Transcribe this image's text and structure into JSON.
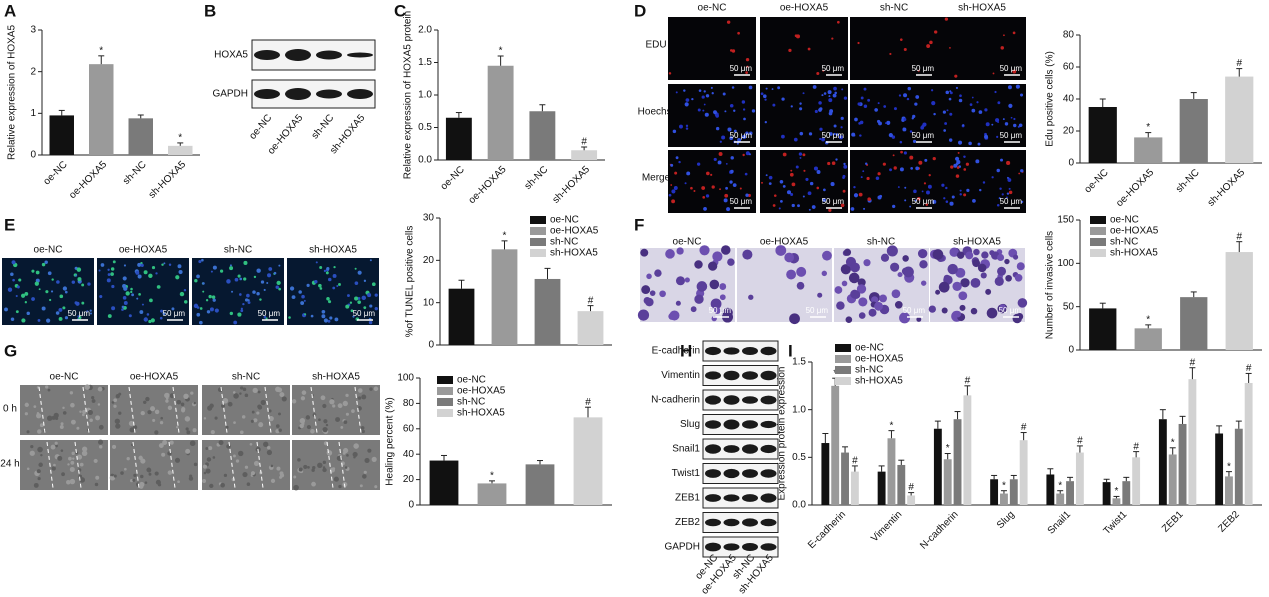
{
  "panel_letters": [
    "A",
    "B",
    "C",
    "D",
    "E",
    "F",
    "G",
    "H",
    "I"
  ],
  "blot_b": {
    "rows": [
      "HOXA5",
      "GAPDH"
    ],
    "lanes": [
      "oe-NC",
      "oe-HOXA5",
      "sh-NC",
      "sh-HOXA5"
    ]
  },
  "images_d": {
    "columns": [
      "oe-NC",
      "oe-HOXA5",
      "sh-NC",
      "sh-HOXA5"
    ],
    "rows": [
      "EDU",
      "Hoechst",
      "Merge"
    ],
    "scale_bar": "50 μm"
  },
  "images_e": {
    "columns": [
      "oe-NC",
      "oe-HOXA5",
      "sh-NC",
      "sh-HOXA5"
    ],
    "scale_bar": "50 μm"
  },
  "images_f": {
    "columns": [
      "oe-NC",
      "oe-HOXA5",
      "sh-NC",
      "sh-HOXA5"
    ],
    "scale_bar": "50 μm"
  },
  "images_g": {
    "columns": [
      "oe-NC",
      "oe-HOXA5",
      "sh-NC",
      "sh-HOXA5"
    ],
    "rows": [
      "0 h",
      "24 h"
    ]
  },
  "blot_h": {
    "rows": [
      "E-cadherin",
      "Vimentin",
      "N-cadherin",
      "Slug",
      "Snail1",
      "Twist1",
      "ZEB1",
      "ZEB2",
      "GAPDH"
    ],
    "lanes": [
      "oe-NC",
      "oe-HOXA5",
      "sh-NC",
      "sh-HOXA5"
    ]
  },
  "chart_data": [
    {
      "type": "bar",
      "y_label": "Relative expression of HOXA5",
      "categories": [
        "oe-NC",
        "oe-HOXA5",
        "sh-NC",
        "sh-HOXA5"
      ],
      "values": [
        0.95,
        2.18,
        0.88,
        0.22
      ],
      "errors": [
        0.12,
        0.2,
        0.08,
        0.07
      ],
      "annotations": [
        null,
        "*",
        null,
        "*"
      ],
      "colors": [
        "#111111",
        "#9a9a9a",
        "#7a7a7a",
        "#d2d2d2"
      ],
      "ylim": [
        0,
        3
      ],
      "yticks": [
        0,
        1,
        2,
        3
      ]
    },
    {
      "type": "bar",
      "y_label": "Relative expression of HOXA5 protein",
      "categories": [
        "oe-NC",
        "oe-HOXA5",
        "sh-NC",
        "sh-HOXA5"
      ],
      "values": [
        0.65,
        1.45,
        0.75,
        0.15
      ],
      "errors": [
        0.08,
        0.15,
        0.1,
        0.05
      ],
      "annotations": [
        null,
        "*",
        null,
        "#"
      ],
      "colors": [
        "#111111",
        "#9a9a9a",
        "#7a7a7a",
        "#d2d2d2"
      ],
      "ylim": [
        0,
        2
      ],
      "yticks": [
        {
          "value": 0,
          "label": "0.0"
        },
        0.5,
        {
          "value": 1,
          "label": "1.0"
        },
        1.5,
        {
          "value": 2,
          "label": "2.0"
        }
      ]
    },
    {
      "type": "bar",
      "y_label": "Edu positive cells (%)",
      "categories": [
        "oe-NC",
        "oe-HOXA5",
        "sh-NC",
        "sh-HOXA5"
      ],
      "values": [
        35,
        16,
        40,
        54
      ],
      "errors": [
        5,
        3,
        4,
        5
      ],
      "annotations": [
        null,
        "*",
        null,
        "#"
      ],
      "colors": [
        "#111111",
        "#9a9a9a",
        "#7a7a7a",
        "#d2d2d2"
      ],
      "ylim": [
        0,
        80
      ],
      "yticks": [
        0,
        20,
        40,
        60,
        80
      ]
    },
    {
      "type": "bar",
      "y_label": "%of TUNEL positive cells",
      "legend": "upper right",
      "series": [
        {
          "name": "oe-NC",
          "color": "#111111",
          "values": [
            13.3
          ],
          "errors": [
            2
          ]
        },
        {
          "name": "oe-HOXA5",
          "color": "#9a9a9a",
          "values": [
            22.6
          ],
          "errors": [
            2
          ],
          "annotations": [
            "*"
          ]
        },
        {
          "name": "sh-NC",
          "color": "#7a7a7a",
          "values": [
            15.6
          ],
          "errors": [
            2.5
          ]
        },
        {
          "name": "sh-HOXA5",
          "color": "#d2d2d2",
          "values": [
            8.0
          ],
          "errors": [
            1.3
          ],
          "annotations": [
            "#"
          ]
        }
      ],
      "ylim": [
        0,
        30
      ],
      "yticks": [
        0,
        10,
        20,
        30
      ]
    },
    {
      "type": "bar",
      "y_label": "Number of invasive cells",
      "legend": "upper left",
      "series": [
        {
          "name": "oe-NC",
          "color": "#111111",
          "values": [
            48
          ],
          "errors": [
            6
          ]
        },
        {
          "name": "oe-HOXA5",
          "color": "#9a9a9a",
          "values": [
            25
          ],
          "errors": [
            4
          ],
          "annotations": [
            "*"
          ]
        },
        {
          "name": "sh-NC",
          "color": "#7a7a7a",
          "values": [
            61
          ],
          "errors": [
            6
          ]
        },
        {
          "name": "sh-HOXA5",
          "color": "#d2d2d2",
          "values": [
            113
          ],
          "errors": [
            12
          ],
          "annotations": [
            "#"
          ]
        }
      ],
      "ylim": [
        0,
        150
      ],
      "yticks": [
        0,
        50,
        100,
        150
      ]
    },
    {
      "type": "bar",
      "y_label": "Healing percent (%)",
      "legend": "upper left",
      "series": [
        {
          "name": "oe-NC",
          "color": "#111111",
          "values": [
            35
          ],
          "errors": [
            4
          ]
        },
        {
          "name": "oe-HOXA5",
          "color": "#9a9a9a",
          "values": [
            17
          ],
          "errors": [
            2
          ],
          "annotations": [
            "*"
          ]
        },
        {
          "name": "sh-NC",
          "color": "#7a7a7a",
          "values": [
            32
          ],
          "errors": [
            3
          ]
        },
        {
          "name": "sh-HOXA5",
          "color": "#d2d2d2",
          "values": [
            69
          ],
          "errors": [
            8
          ],
          "annotations": [
            "#"
          ]
        }
      ],
      "ylim": [
        0,
        100
      ],
      "yticks": [
        0,
        20,
        40,
        60,
        80,
        100
      ]
    },
    {
      "type": "bar",
      "y_label": "Expression protein expression",
      "legend": "upper left",
      "categories": [
        "E-cadherin",
        "Vimentin",
        "N-cadherin",
        "Slug",
        "Snail1",
        "Twist1",
        "ZEB1",
        "ZEB2"
      ],
      "series": [
        {
          "name": "oe-NC",
          "color": "#111111",
          "values": [
            0.65,
            0.35,
            0.8,
            0.27,
            0.32,
            0.24,
            0.9,
            0.75
          ],
          "errors": [
            0.1,
            0.06,
            0.08,
            0.04,
            0.06,
            0.03,
            0.1,
            0.08
          ]
        },
        {
          "name": "oe-HOXA5",
          "color": "#9a9a9a",
          "values": [
            1.25,
            0.7,
            0.48,
            0.12,
            0.12,
            0.07,
            0.53,
            0.3
          ],
          "errors": [
            0.08,
            0.08,
            0.06,
            0.03,
            0.03,
            0.02,
            0.07,
            0.05
          ],
          "annotations": [
            "*",
            "*",
            "*",
            "*",
            "*",
            "*",
            "*",
            "*"
          ]
        },
        {
          "name": "sh-NC",
          "color": "#7a7a7a",
          "values": [
            0.55,
            0.42,
            0.9,
            0.27,
            0.25,
            0.25,
            0.85,
            0.8
          ],
          "errors": [
            0.06,
            0.05,
            0.08,
            0.04,
            0.04,
            0.04,
            0.08,
            0.08
          ]
        },
        {
          "name": "sh-HOXA5",
          "color": "#d2d2d2",
          "values": [
            0.35,
            0.1,
            1.15,
            0.68,
            0.55,
            0.5,
            1.32,
            1.28
          ],
          "errors": [
            0.06,
            0.03,
            0.1,
            0.08,
            0.07,
            0.06,
            0.12,
            0.1
          ],
          "annotations": [
            "#",
            "#",
            "#",
            "#",
            "#",
            "#",
            "#",
            "#"
          ]
        }
      ],
      "ylim": [
        0,
        1.5
      ],
      "yticks": [
        {
          "value": 0,
          "label": "0.0"
        },
        0.5,
        {
          "value": 1,
          "label": "1.0"
        },
        1.5
      ]
    }
  ]
}
